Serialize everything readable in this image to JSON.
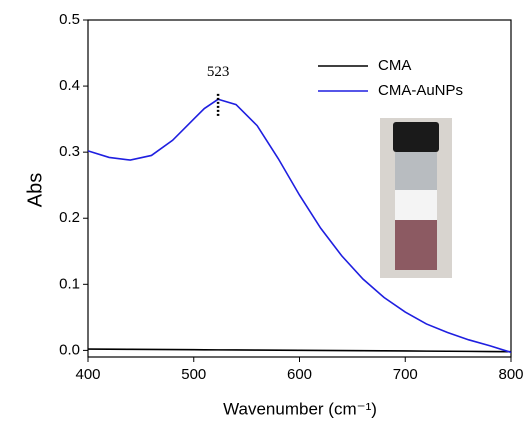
{
  "chart_data": {
    "type": "line",
    "y_label": "Abs",
    "x_label": "Wavenumber (cm⁻¹)",
    "x": [
      400,
      420,
      440,
      460,
      480,
      500,
      510,
      523,
      540,
      560,
      580,
      600,
      620,
      640,
      660,
      680,
      700,
      720,
      740,
      760,
      780,
      800
    ],
    "series": [
      {
        "name": "CMA",
        "color": "#000000",
        "values": [
          0.002,
          0.0018,
          0.0016,
          0.0014,
          0.0012,
          0.001,
          0.0009,
          0.0008,
          0.0007,
          0.0005,
          0.0003,
          0.0001,
          -0.0001,
          -0.0003,
          -0.0005,
          -0.0007,
          -0.0009,
          -0.0011,
          -0.0013,
          -0.0015,
          -0.0018,
          -0.002
        ]
      },
      {
        "name": "CMA-AuNPs",
        "color": "#1f1fe0",
        "values": [
          0.302,
          0.292,
          0.288,
          0.295,
          0.318,
          0.35,
          0.366,
          0.38,
          0.372,
          0.34,
          0.29,
          0.235,
          0.185,
          0.143,
          0.108,
          0.08,
          0.058,
          0.04,
          0.027,
          0.016,
          0.007,
          -0.003
        ]
      }
    ],
    "xlim": [
      400,
      800
    ],
    "ylim": [
      -0.01,
      0.5
    ],
    "xticks": [
      400,
      500,
      600,
      700,
      800
    ],
    "yticks": [
      {
        "value": 0,
        "label": "0.0"
      },
      0.1,
      0.2,
      0.3,
      0.4,
      0.5
    ],
    "annotation": {
      "text": "523",
      "x": 523,
      "y": [
        0.355,
        0.39
      ]
    },
    "legend": "upper right"
  }
}
